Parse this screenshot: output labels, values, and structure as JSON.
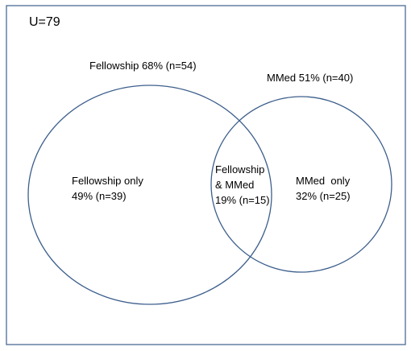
{
  "universe": {
    "label": "U=79"
  },
  "sets": [
    {
      "name": "Fellowship 68% (n=54)"
    },
    {
      "name": "MMed 51% (n=40)"
    }
  ],
  "regions": {
    "fellowship_only": {
      "line1": "Fellowship only",
      "line2": "49% (n=39)"
    },
    "overlap": {
      "line1": "Fellowship",
      "line2": "& MMed",
      "line3": "19% (n=15)"
    },
    "mmed_only": {
      "line1": "MMed  only",
      "line2": "32% (n=25)"
    }
  },
  "colors": {
    "circle_stroke": "#3d5f8c",
    "frame_stroke": "#4a6b94"
  }
}
